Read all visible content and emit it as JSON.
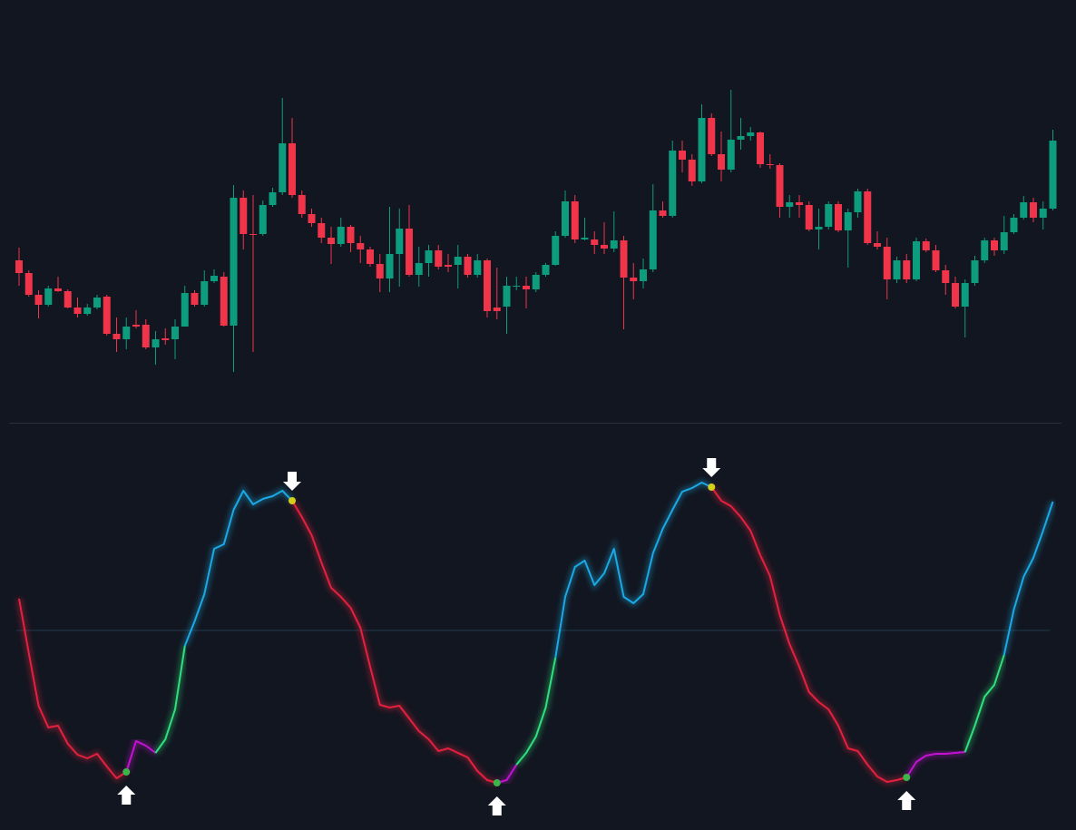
{
  "chart_data": [
    {
      "type": "candlestick",
      "up_color": "#0d9c7d",
      "down_color": "#f0344a",
      "ylim": [
        0,
        460
      ],
      "open": [
        173,
        159,
        135,
        124,
        142,
        139,
        121,
        114,
        121,
        133,
        92,
        86,
        102,
        102,
        77,
        87,
        86,
        100,
        137,
        124,
        150,
        155,
        101,
        242,
        202,
        202,
        234,
        248,
        302,
        245,
        224,
        214,
        198,
        191,
        210,
        192,
        185,
        169,
        153,
        180,
        208,
        157,
        170,
        184,
        168,
        168,
        177,
        157,
        173,
        121,
        122,
        144,
        145,
        141,
        157,
        168,
        200,
        238,
        196,
        196,
        190,
        186,
        195,
        154,
        150,
        163,
        228,
        222,
        294,
        284,
        260,
        330,
        290,
        273,
        306,
        310,
        314,
        279,
        278,
        232,
        237,
        234,
        207,
        210,
        235,
        206,
        226,
        249,
        192,
        188,
        152,
        173,
        152,
        194,
        184,
        162,
        148,
        122,
        148,
        173,
        195,
        184,
        204,
        220,
        237,
        220,
        230
      ],
      "high": [
        187,
        162,
        140,
        145,
        155,
        141,
        132,
        125,
        135,
        135,
        110,
        110,
        118,
        108,
        95,
        98,
        108,
        145,
        140,
        162,
        163,
        160,
        256,
        250,
        245,
        239,
        253,
        352,
        330,
        250,
        230,
        220,
        210,
        220,
        212,
        200,
        188,
        180,
        232,
        230,
        234,
        188,
        190,
        190,
        180,
        190,
        180,
        180,
        175,
        165,
        155,
        155,
        155,
        160,
        170,
        205,
        250,
        245,
        220,
        205,
        215,
        227,
        200,
        170,
        175,
        257,
        238,
        305,
        305,
        290,
        345,
        335,
        315,
        361,
        330,
        320,
        315,
        290,
        280,
        245,
        245,
        238,
        230,
        238,
        238,
        230,
        252,
        252,
        205,
        198,
        177,
        180,
        198,
        197,
        190,
        168,
        155,
        152,
        178,
        198,
        198,
        222,
        224,
        244,
        242,
        238,
        317
      ],
      "low": [
        145,
        133,
        109,
        122,
        138,
        120,
        110,
        112,
        119,
        90,
        72,
        75,
        98,
        75,
        58,
        80,
        64,
        100,
        122,
        122,
        148,
        100,
        50,
        185,
        72,
        200,
        232,
        245,
        242,
        220,
        210,
        192,
        169,
        188,
        182,
        170,
        166,
        138,
        138,
        144,
        155,
        144,
        155,
        163,
        160,
        142,
        154,
        154,
        110,
        108,
        92,
        140,
        120,
        138,
        155,
        167,
        198,
        192,
        195,
        180,
        180,
        182,
        97,
        130,
        142,
        160,
        220,
        220,
        270,
        255,
        258,
        288,
        260,
        270,
        295,
        305,
        275,
        274,
        220,
        220,
        220,
        205,
        185,
        207,
        204,
        165,
        220,
        190,
        185,
        130,
        148,
        148,
        150,
        182,
        160,
        135,
        120,
        88,
        145,
        170,
        178,
        180,
        202,
        218,
        215,
        207,
        228
      ],
      "close": [
        159,
        135,
        124,
        142,
        139,
        121,
        114,
        121,
        132,
        92,
        86,
        100,
        100,
        77,
        86,
        85,
        100,
        137,
        124,
        150,
        156,
        101,
        242,
        202,
        201,
        234,
        248,
        302,
        245,
        224,
        214,
        198,
        191,
        210,
        192,
        185,
        169,
        153,
        180,
        208,
        157,
        170,
        184,
        166,
        166,
        177,
        157,
        173,
        117,
        117,
        145,
        145,
        141,
        157,
        168,
        200,
        238,
        196,
        198,
        190,
        186,
        195,
        154,
        150,
        163,
        228,
        222,
        294,
        284,
        260,
        330,
        290,
        273,
        306,
        310,
        314,
        279,
        278,
        232,
        237,
        234,
        207,
        210,
        235,
        206,
        226,
        249,
        192,
        188,
        152,
        173,
        152,
        194,
        184,
        162,
        148,
        122,
        148,
        173,
        195,
        184,
        204,
        220,
        237,
        220,
        230,
        305
      ]
    },
    {
      "type": "line",
      "ylim": [
        0,
        430
      ],
      "midline": 220,
      "midline_color": "#1e3a4c",
      "values": [
        255,
        195,
        137,
        113,
        115,
        95,
        83,
        79,
        84,
        70,
        57,
        64,
        98,
        93,
        85,
        100,
        133,
        203,
        230,
        260,
        310,
        315,
        353,
        374,
        359,
        365,
        368,
        374,
        363,
        345,
        325,
        295,
        267,
        257,
        245,
        223,
        180,
        138,
        135,
        137,
        123,
        109,
        100,
        87,
        90,
        85,
        80,
        65,
        55,
        52,
        55,
        72,
        85,
        103,
        135,
        190,
        257,
        290,
        297,
        270,
        283,
        310,
        257,
        250,
        260,
        305,
        332,
        353,
        373,
        377,
        383,
        378,
        363,
        357,
        345,
        330,
        303,
        280,
        237,
        205,
        180,
        152,
        141,
        133,
        115,
        90,
        87,
        72,
        59,
        53,
        55,
        58,
        75,
        82,
        84,
        84,
        85,
        86,
        115,
        147,
        160,
        193,
        243,
        279,
        300,
        330,
        362
      ],
      "colors": [
        "#e5203f",
        "#e5203f",
        "#e5203f",
        "#e5203f",
        "#e5203f",
        "#e5203f",
        "#e5203f",
        "#e5203f",
        "#e5203f",
        "#e5203f",
        "#e5203f",
        "#c312d2",
        "#c312d2",
        "#c312d2",
        "#2fe07c",
        "#2fe07c",
        "#2fe07c",
        "#1ba9e4",
        "#1ba9e4",
        "#1ba9e4",
        "#1ba9e4",
        "#1ba9e4",
        "#1ba9e4",
        "#1ba9e4",
        "#1ba9e4",
        "#1ba9e4",
        "#1ba9e4",
        "#1ba9e4",
        "#e5203f",
        "#e5203f",
        "#e5203f",
        "#e5203f",
        "#e5203f",
        "#e5203f",
        "#e5203f",
        "#e5203f",
        "#e5203f",
        "#e5203f",
        "#e5203f",
        "#e5203f",
        "#e5203f",
        "#e5203f",
        "#e5203f",
        "#e5203f",
        "#e5203f",
        "#e5203f",
        "#e5203f",
        "#e5203f",
        "#e5203f",
        "#c312d2",
        "#c312d2",
        "#2fe07c",
        "#2fe07c",
        "#2fe07c",
        "#2fe07c",
        "#1ba9e4",
        "#1ba9e4",
        "#1ba9e4",
        "#1ba9e4",
        "#1ba9e4",
        "#1ba9e4",
        "#1ba9e4",
        "#1ba9e4",
        "#1ba9e4",
        "#1ba9e4",
        "#1ba9e4",
        "#1ba9e4",
        "#1ba9e4",
        "#1ba9e4",
        "#1ba9e4",
        "#1ba9e4",
        "#e5203f",
        "#e5203f",
        "#e5203f",
        "#e5203f",
        "#e5203f",
        "#e5203f",
        "#e5203f",
        "#e5203f",
        "#e5203f",
        "#e5203f",
        "#e5203f",
        "#e5203f",
        "#e5203f",
        "#e5203f",
        "#e5203f",
        "#e5203f",
        "#e5203f",
        "#e5203f",
        "#e5203f",
        "#e5203f",
        "#c312d2",
        "#c312d2",
        "#c312d2",
        "#c312d2",
        "#c312d2",
        "#c312d2",
        "#2fe07c",
        "#2fe07c",
        "#2fe07c",
        "#2fe07c",
        "#1ba9e4",
        "#1ba9e4",
        "#1ba9e4",
        "#1ba9e4",
        "#1ba9e4",
        "#1ba9e4"
      ],
      "buy_points": [
        11,
        49,
        91
      ],
      "buy_color": "#3cb54a",
      "sell_points": [
        28,
        71
      ],
      "sell_color": "#d4cf1a"
    }
  ]
}
